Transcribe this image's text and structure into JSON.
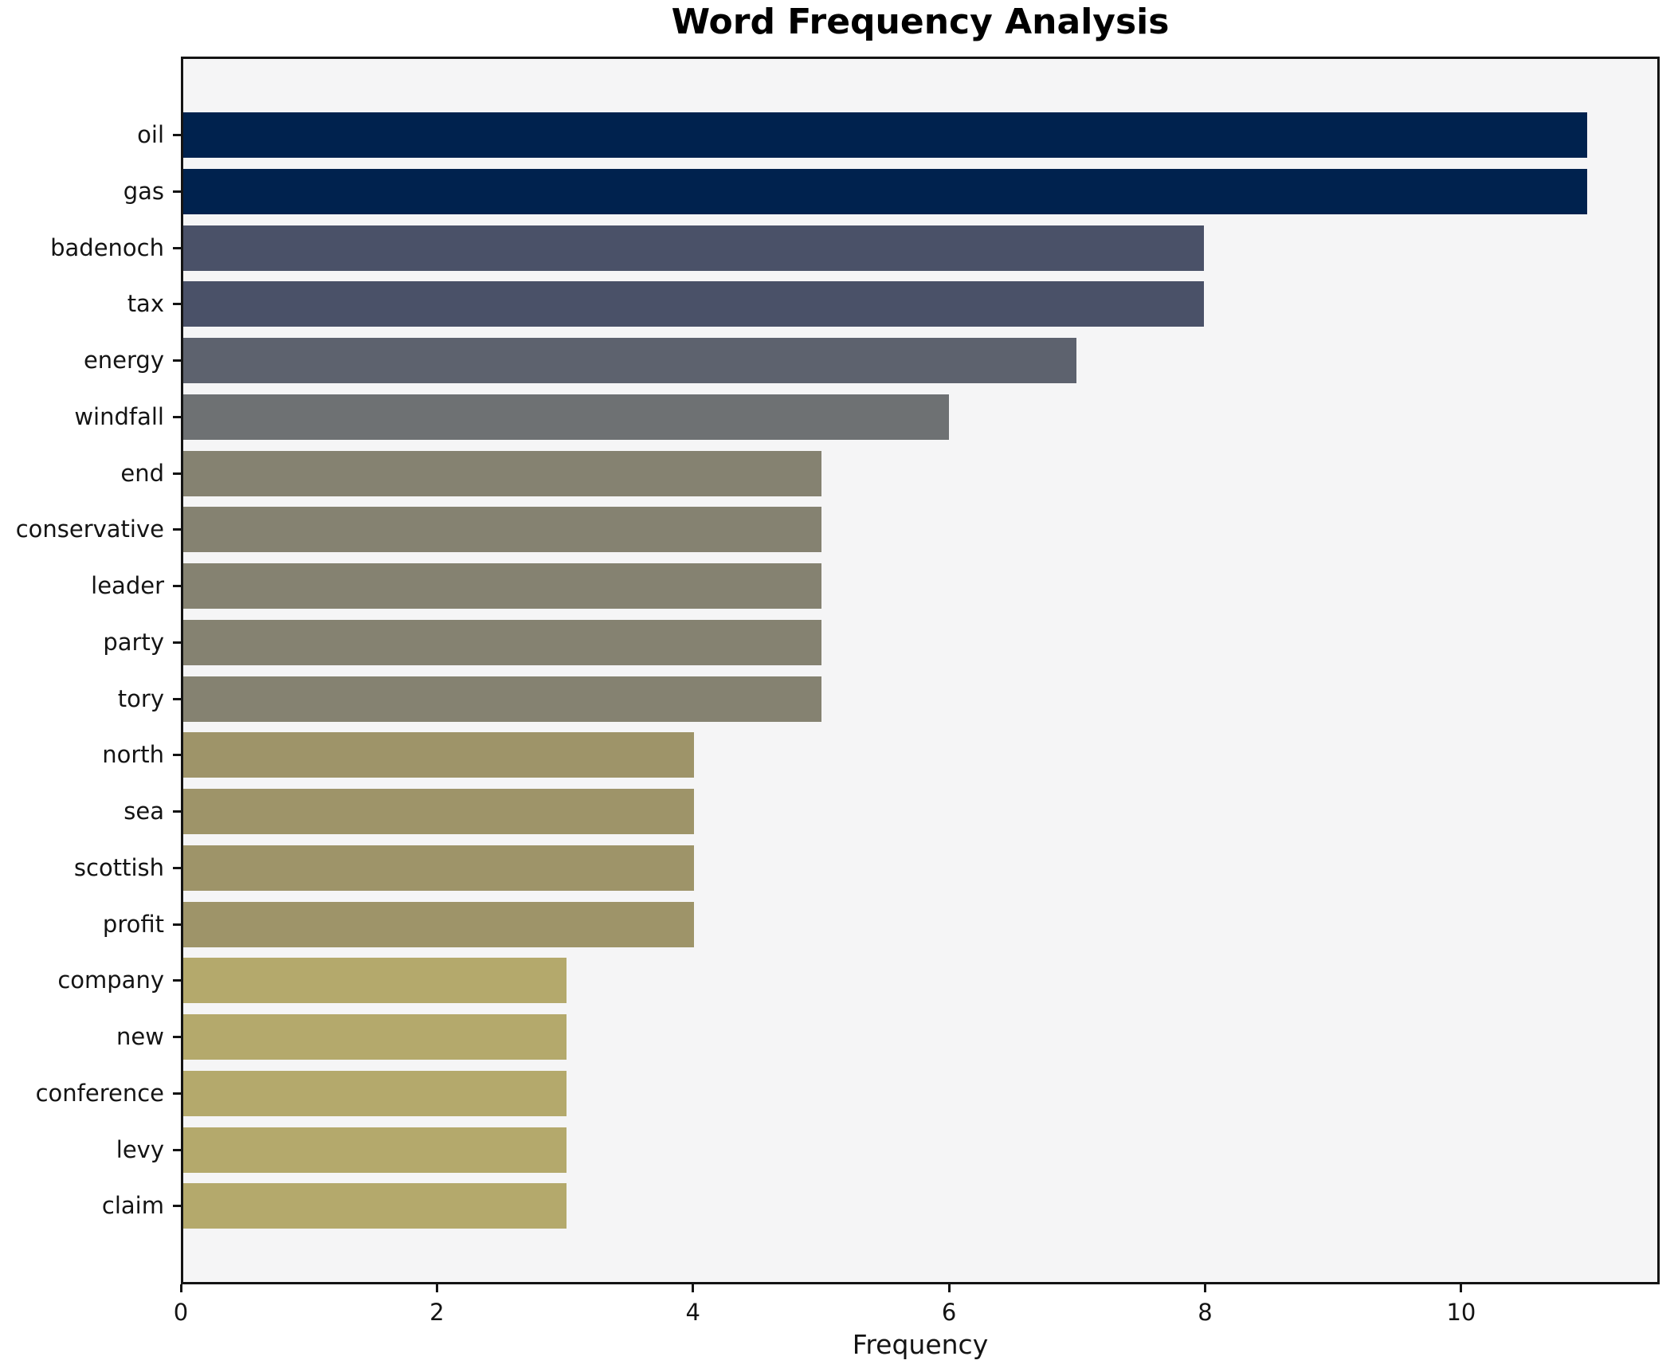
{
  "chart_data": {
    "type": "bar",
    "orientation": "horizontal",
    "title": "Word Frequency Analysis",
    "xlabel": "Frequency",
    "ylabel": "",
    "categories": [
      "oil",
      "gas",
      "badenoch",
      "tax",
      "energy",
      "windfall",
      "end",
      "conservative",
      "leader",
      "party",
      "tory",
      "north",
      "sea",
      "scottish",
      "profit",
      "company",
      "new",
      "conference",
      "levy",
      "claim"
    ],
    "values": [
      11,
      11,
      8,
      8,
      7,
      6,
      5,
      5,
      5,
      5,
      5,
      4,
      4,
      4,
      4,
      3,
      3,
      3,
      3,
      3
    ],
    "bar_colors": [
      "#00224e",
      "#00224e",
      "#4a5168",
      "#4a5168",
      "#5d626e",
      "#6e7173",
      "#858271",
      "#858271",
      "#858271",
      "#858271",
      "#858271",
      "#9e9469",
      "#9e9469",
      "#9e9469",
      "#9e9469",
      "#b4a96c",
      "#b4a96c",
      "#b4a96c",
      "#b4a96c",
      "#b4a96c"
    ],
    "xticks": [
      0,
      2,
      4,
      6,
      8,
      10
    ],
    "xlim": [
      0,
      11.55
    ],
    "grid": false,
    "legend_position": "none",
    "plot_background": "#f5f5f6",
    "figure_background": "#ffffff",
    "spine_color": "#141414",
    "text_color": "#141414"
  }
}
